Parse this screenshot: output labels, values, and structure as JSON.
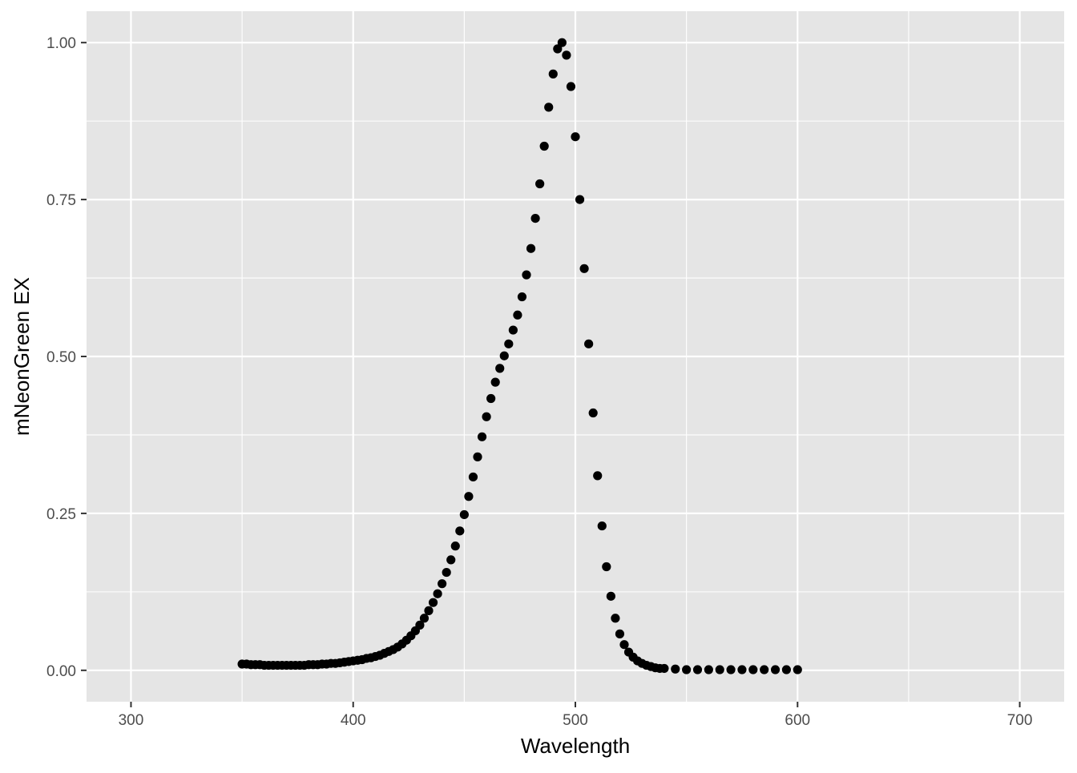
{
  "chart_data": {
    "type": "scatter",
    "title": "",
    "xlabel": "Wavelength",
    "ylabel": "mNeonGreen EX",
    "xlim": [
      280,
      720
    ],
    "ylim": [
      -0.05,
      1.05
    ],
    "x_ticks": [
      300,
      400,
      500,
      600,
      700
    ],
    "x_tick_labels": [
      "300",
      "400",
      "500",
      "600",
      "700"
    ],
    "y_ticks": [
      0,
      0.25,
      0.5,
      0.75,
      1.0
    ],
    "y_tick_labels": [
      "0.00",
      "0.25",
      "0.50",
      "0.75",
      "1.00"
    ],
    "grid": true,
    "legend": "none",
    "colors": {
      "panel_background": "#e5e5e5",
      "grid": "#ffffff",
      "point": "#000000"
    },
    "series": [
      {
        "x": [
          350,
          352,
          354,
          356,
          358,
          360,
          362,
          364,
          366,
          368,
          370,
          372,
          374,
          376,
          378,
          380,
          382,
          384,
          386,
          388,
          390,
          392,
          394,
          396,
          398,
          400,
          402,
          404,
          406,
          408,
          410,
          412,
          414,
          416,
          418,
          420,
          422,
          424,
          426,
          428,
          430,
          432,
          434,
          436,
          438,
          440,
          442,
          444,
          446,
          448,
          450,
          452,
          454,
          456,
          458,
          460,
          462,
          464,
          466,
          468,
          470,
          472,
          474,
          476,
          478,
          480,
          482,
          484,
          486,
          488,
          490,
          492,
          494,
          496,
          498,
          500,
          502,
          504,
          506,
          508,
          510,
          512,
          514,
          516,
          518,
          520,
          522,
          524,
          526,
          528,
          530,
          532,
          534,
          536,
          538,
          540,
          545,
          550,
          555,
          560,
          565,
          570,
          575,
          580,
          585,
          590,
          595,
          600
        ],
        "y": [
          0.01,
          0.01,
          0.009,
          0.009,
          0.009,
          0.008,
          0.008,
          0.008,
          0.008,
          0.008,
          0.008,
          0.008,
          0.008,
          0.008,
          0.008,
          0.009,
          0.009,
          0.009,
          0.01,
          0.01,
          0.011,
          0.011,
          0.012,
          0.013,
          0.014,
          0.015,
          0.016,
          0.017,
          0.019,
          0.02,
          0.022,
          0.024,
          0.027,
          0.03,
          0.033,
          0.037,
          0.042,
          0.048,
          0.055,
          0.063,
          0.072,
          0.083,
          0.095,
          0.108,
          0.122,
          0.138,
          0.156,
          0.176,
          0.198,
          0.222,
          0.248,
          0.277,
          0.308,
          0.34,
          0.372,
          0.404,
          0.433,
          0.459,
          0.481,
          0.501,
          0.52,
          0.542,
          0.566,
          0.595,
          0.63,
          0.672,
          0.72,
          0.775,
          0.835,
          0.897,
          0.95,
          0.99,
          1.0,
          0.98,
          0.93,
          0.85,
          0.75,
          0.64,
          0.52,
          0.41,
          0.31,
          0.23,
          0.165,
          0.118,
          0.083,
          0.058,
          0.041,
          0.029,
          0.021,
          0.015,
          0.011,
          0.008,
          0.006,
          0.004,
          0.003,
          0.003,
          0.002,
          0.001,
          0.001,
          0.001,
          0.001,
          0.001,
          0.001,
          0.001,
          0.001,
          0.001,
          0.001,
          0.001
        ]
      }
    ]
  }
}
